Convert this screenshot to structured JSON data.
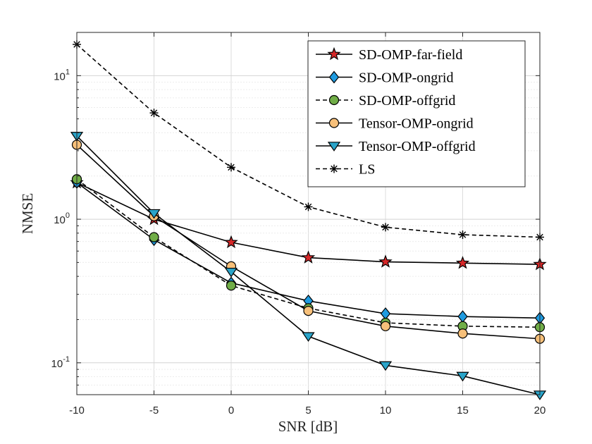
{
  "chart_data": {
    "type": "line",
    "title": "",
    "xlabel": "SNR [dB]",
    "ylabel": "NMSE",
    "yscale": "log",
    "xlim": [
      -10,
      20
    ],
    "ylim": [
      0.06,
      20
    ],
    "x": [
      -10,
      -5,
      0,
      5,
      10,
      15,
      20
    ],
    "xticks": [
      -10,
      -5,
      0,
      5,
      10,
      15,
      20
    ],
    "xtick_labels": [
      "-10",
      "-5",
      "0",
      "5",
      "10",
      "15",
      "20"
    ],
    "ytick_labels": [
      {
        "value": 0.1,
        "base": "10",
        "exp": "-1"
      },
      {
        "value": 1,
        "base": "10",
        "exp": "0"
      },
      {
        "value": 10,
        "base": "10",
        "exp": "1"
      }
    ],
    "grid": true,
    "legend_position": "top-right",
    "series": [
      {
        "name": "SD-OMP-far-field",
        "values": [
          1.8,
          1.0,
          0.69,
          0.54,
          0.505,
          0.495,
          0.485
        ],
        "marker": "star",
        "marker_color": "#d62728",
        "line": "solid"
      },
      {
        "name": "SD-OMP-ongrid",
        "values": [
          1.8,
          0.72,
          0.36,
          0.27,
          0.22,
          0.21,
          0.205
        ],
        "marker": "diamond",
        "marker_color": "#1f9be0",
        "line": "solid"
      },
      {
        "name": "SD-OMP-offgrid",
        "values": [
          1.9,
          0.75,
          0.345,
          0.24,
          0.19,
          0.18,
          0.177
        ],
        "marker": "circle",
        "marker_color": "#70ad47",
        "line": "dashed"
      },
      {
        "name": "Tensor-OMP-ongrid",
        "values": [
          3.3,
          1.05,
          0.47,
          0.23,
          0.18,
          0.16,
          0.147
        ],
        "marker": "circle",
        "marker_color": "#f7c07a",
        "line": "solid"
      },
      {
        "name": "Tensor-OMP-offgrid",
        "values": [
          3.8,
          1.1,
          0.43,
          0.153,
          0.096,
          0.081,
          0.06
        ],
        "marker": "triangle-down",
        "marker_color": "#2aa4c9",
        "line": "solid"
      },
      {
        "name": "LS",
        "values": [
          16.5,
          5.5,
          2.3,
          1.22,
          0.88,
          0.78,
          0.75
        ],
        "marker": "asterisk",
        "marker_color": "#000000",
        "line": "dashed"
      }
    ]
  }
}
